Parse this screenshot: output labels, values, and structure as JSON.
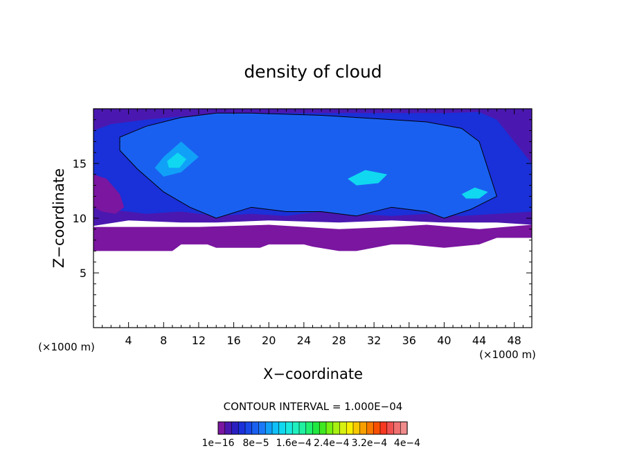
{
  "chart_data": {
    "type": "heatmap",
    "title": "density of cloud",
    "xlabel": "X−coordinate",
    "ylabel": "Z−coordinate",
    "x_unit_left": "(×1000 m)",
    "x_unit_right": "(×1000 m)",
    "xlim": [
      0,
      50
    ],
    "ylim": [
      0,
      20
    ],
    "x_ticks": [
      4,
      8,
      12,
      16,
      20,
      24,
      28,
      32,
      36,
      40,
      44,
      48
    ],
    "y_ticks": [
      5,
      10,
      15
    ],
    "contour_interval_text": "CONTOUR INTERVAL = 1.000E−04",
    "colorbar": {
      "labels": [
        "1e−16",
        "8e−5",
        "1.6e−4",
        "2.4e−4",
        "3.2e−4",
        "4e−4"
      ],
      "label_values": [
        1e-16,
        8e-05,
        0.00016,
        0.00024,
        0.00032,
        0.0004
      ],
      "colors": [
        "#7a16a0",
        "#4a18b0",
        "#2a20c0",
        "#1a30d8",
        "#1848e8",
        "#1a60f0",
        "#1a78f8",
        "#10a0f8",
        "#10c0f8",
        "#10d8f0",
        "#18e8e0",
        "#20f0c0",
        "#20f0a0",
        "#20f070",
        "#20e840",
        "#40e820",
        "#78f010",
        "#a8f010",
        "#d8f010",
        "#f8f000",
        "#f8c800",
        "#f8a000",
        "#f87800",
        "#f85000",
        "#f83820",
        "#f05050",
        "#f07070",
        "#f08c8c"
      ]
    },
    "regions": [
      {
        "name": "base-cloud-purple",
        "level": 1e-16,
        "x": [
          0,
          12,
          20,
          28,
          34,
          38,
          44,
          50,
          50,
          46,
          44,
          40,
          36,
          34,
          30,
          28,
          25,
          24,
          20,
          19,
          14,
          13,
          10,
          9,
          2,
          0
        ],
        "y": [
          9.2,
          9.2,
          9.4,
          9.0,
          9.2,
          9.4,
          9.0,
          9.4,
          8.2,
          8.2,
          7.6,
          7.3,
          7.6,
          7.6,
          7.0,
          7.0,
          7.4,
          7.6,
          7.6,
          7.3,
          7.3,
          7.6,
          7.6,
          7.0,
          7.0,
          7.0
        ]
      },
      {
        "name": "cloud-dark-blue",
        "level": 2e-05,
        "x": [
          0,
          4,
          10,
          14,
          20,
          28,
          34,
          40,
          46,
          50,
          50,
          44,
          40,
          30,
          24,
          20,
          14,
          8,
          3,
          0
        ],
        "y": [
          9.3,
          9.8,
          9.6,
          9.6,
          9.8,
          9.6,
          9.8,
          9.6,
          9.6,
          9.4,
          20,
          20,
          20,
          20,
          20,
          20,
          20,
          20,
          20,
          20
        ]
      },
      {
        "name": "cloud-mid-blue",
        "level": 5e-05,
        "x": [
          0,
          2,
          6,
          10,
          14,
          18,
          22,
          26,
          30,
          34,
          38,
          42,
          46,
          50,
          50,
          48,
          46,
          44,
          40,
          36,
          30,
          24,
          18,
          14,
          10,
          6,
          2,
          0
        ],
        "y": [
          11.8,
          10.8,
          10.4,
          10.6,
          10.2,
          10.4,
          10.2,
          10.6,
          10.4,
          10.2,
          10.4,
          10.2,
          10.4,
          10.6,
          15,
          17,
          19,
          19.7,
          19.6,
          19.6,
          19.6,
          19.6,
          19.6,
          19.4,
          19.3,
          19.0,
          18.6,
          18.0
        ]
      },
      {
        "name": "cloud-light-blue",
        "level": 8e-05,
        "x": [
          3,
          5,
          8,
          11,
          14,
          18,
          22,
          26,
          30,
          34,
          38,
          40,
          43,
          46,
          44,
          42,
          38,
          34,
          30,
          26,
          22,
          18,
          14,
          10,
          6,
          3
        ],
        "y": [
          16.2,
          14.5,
          12.4,
          11.0,
          10.0,
          11.0,
          10.6,
          10.6,
          10.2,
          11.0,
          10.6,
          10.0,
          10.8,
          12.0,
          17.0,
          18.2,
          18.8,
          19.0,
          19.2,
          19.4,
          19.5,
          19.6,
          19.6,
          19.2,
          18.4,
          17.4
        ]
      },
      {
        "name": "cloud-cyan-core",
        "level": 0.00011,
        "x": [
          8,
          10,
          12,
          10,
          8,
          7
        ],
        "y": [
          15.6,
          17.0,
          15.6,
          14.2,
          13.8,
          14.6
        ]
      },
      {
        "name": "cloud-green-core-1",
        "level": 0.00014,
        "x": [
          8.4,
          9.6,
          10.6,
          9.8,
          8.6
        ],
        "y": [
          15.2,
          16.0,
          15.4,
          14.6,
          14.6
        ]
      },
      {
        "name": "cloud-green-core-2",
        "level": 0.00014,
        "x": [
          29,
          31,
          33.5,
          32.5,
          30
        ],
        "y": [
          13.6,
          14.4,
          14.0,
          13.2,
          13.0
        ]
      },
      {
        "name": "cloud-green-core-3",
        "level": 0.00014,
        "x": [
          42,
          43.5,
          45,
          44,
          42.5
        ],
        "y": [
          12.2,
          12.8,
          12.4,
          11.8,
          11.8
        ]
      },
      {
        "name": "cloud-magenta-patch",
        "level": 1e-16,
        "x": [
          0,
          1.5,
          3,
          3.5,
          2.5,
          1,
          0
        ],
        "y": [
          14.0,
          13.6,
          12.2,
          11.0,
          10.4,
          10.6,
          11.0
        ]
      }
    ]
  }
}
